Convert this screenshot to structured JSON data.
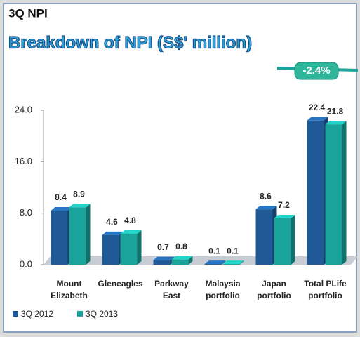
{
  "chart_data": {
    "type": "bar",
    "title": "3Q NPI",
    "subtitle": "Breakdown of NPI (S$' million)",
    "annotation": "-2.4%",
    "categories": [
      "Mount\nElizabeth",
      "Gleneagles",
      "Parkway\nEast",
      "Malaysia\nportfolio",
      "Japan\nportfolio",
      "Total PLife\nportfolio"
    ],
    "series": [
      {
        "name": "3Q 2012",
        "color": "#1f5a96",
        "values": [
          8.4,
          4.6,
          0.7,
          0.1,
          8.6,
          22.4
        ]
      },
      {
        "name": "3Q 2013",
        "color": "#1aa39a",
        "values": [
          8.9,
          4.8,
          0.8,
          0.1,
          7.2,
          21.8
        ]
      }
    ],
    "ylim": [
      0,
      24
    ],
    "yticks": [
      {
        "value": 0,
        "label": "0.0"
      },
      {
        "value": 8,
        "label": "8.0"
      },
      {
        "value": 16,
        "label": "16.0"
      },
      {
        "value": 24,
        "label": "24.0"
      }
    ],
    "legend": "bottom-left"
  }
}
